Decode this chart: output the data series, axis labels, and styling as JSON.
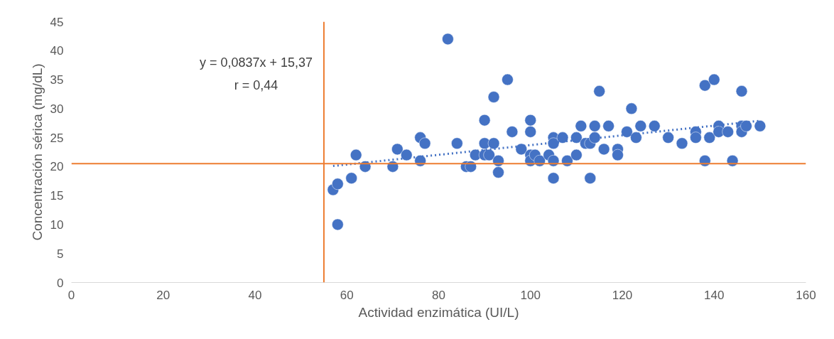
{
  "chart_data": {
    "type": "scatter",
    "xlabel": "Actividad enzimática (UI/L)",
    "ylabel": "Concentración sérica (mg/dL)",
    "xlim": [
      0,
      160
    ],
    "xticks": [
      0,
      20,
      40,
      60,
      80,
      100,
      120,
      140,
      160
    ],
    "ylim": [
      0,
      45
    ],
    "yticks": [
      0,
      5,
      10,
      15,
      20,
      25,
      30,
      35,
      40,
      45
    ],
    "grid": false,
    "marker": "circle",
    "annotations": [
      "y = 0,0837x + 15,37",
      "r = 0,44"
    ],
    "ref_lines": [
      {
        "axis": "x",
        "value": 55,
        "label": null,
        "color": "#ed7d31"
      },
      {
        "axis": "y",
        "value": 20.5,
        "label": null,
        "color": "#ed7d31"
      }
    ],
    "series": [
      {
        "color": "#4472c4",
        "x": [
          57,
          58,
          58,
          61,
          62,
          64,
          70,
          71,
          73,
          76,
          76,
          77,
          82,
          84,
          86,
          87,
          88,
          90,
          90,
          90,
          91,
          92,
          92,
          93,
          93,
          95,
          96,
          98,
          100,
          100,
          100,
          100,
          101,
          102,
          104,
          105,
          105,
          105,
          105,
          107,
          108,
          110,
          110,
          111,
          112,
          113,
          113,
          114,
          114,
          115,
          116,
          117,
          119,
          119,
          121,
          122,
          123,
          124,
          127,
          130,
          133,
          136,
          136,
          138,
          138,
          139,
          140,
          141,
          141,
          143,
          144,
          146,
          146,
          146,
          147,
          150
        ],
        "values": [
          16,
          17,
          10,
          18,
          22,
          20,
          20,
          23,
          22,
          25,
          21,
          24,
          42,
          24,
          20,
          20,
          22,
          28,
          24,
          22,
          22,
          32,
          24,
          21,
          19,
          35,
          26,
          23,
          28,
          26,
          22,
          21,
          22,
          21,
          22,
          25,
          24,
          21,
          18,
          25,
          21,
          25,
          22,
          27,
          24,
          24,
          18,
          27,
          25,
          33,
          23,
          27,
          23,
          22,
          26,
          30,
          25,
          27,
          27,
          25,
          24,
          26,
          25,
          34,
          21,
          25,
          35,
          27,
          26,
          26,
          21,
          33,
          27,
          26,
          27,
          27
        ]
      },
      {
        "type": "line",
        "color": "#4472c4",
        "line_style": "dotted",
        "marker": "none",
        "x": [
          57,
          150
        ],
        "values": [
          20.1,
          27.9
        ]
      }
    ]
  }
}
